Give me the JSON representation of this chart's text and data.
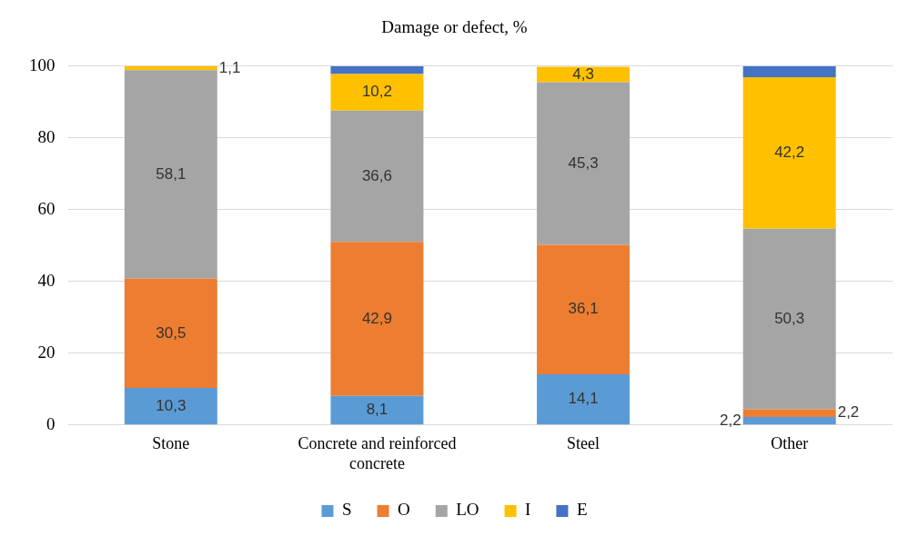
{
  "chart_data": {
    "type": "bar",
    "title": "Damage or defect, %",
    "stacked": true,
    "categories": [
      "Stone",
      "Concrete and reinforced concrete",
      "Steel",
      "Other"
    ],
    "series": [
      {
        "name": "S",
        "color": "#5b9bd5",
        "values": [
          10.3,
          8.1,
          14.1,
          2.2
        ],
        "value_labels": [
          "10,3",
          "8,1",
          "14,1",
          "2,2"
        ]
      },
      {
        "name": "O",
        "color": "#ed7d31",
        "values": [
          30.5,
          42.9,
          36.1,
          2.2
        ],
        "value_labels": [
          "30,5",
          "42,9",
          "36,1",
          "2,2"
        ]
      },
      {
        "name": "LO",
        "color": "#a5a5a5",
        "values": [
          58.1,
          36.6,
          45.3,
          50.3
        ],
        "value_labels": [
          "58,1",
          "36,6",
          "45,3",
          "50,3"
        ]
      },
      {
        "name": "I",
        "color": "#ffc000",
        "values": [
          1.1,
          10.2,
          4.3,
          42.2
        ],
        "value_labels": [
          "1,1",
          "10,2",
          "4,3",
          "42,2"
        ]
      },
      {
        "name": "E",
        "color": "#4472c4",
        "values": [
          null,
          2.2,
          null,
          3.1
        ],
        "value_labels": [
          null,
          null,
          null,
          null
        ]
      }
    ],
    "ylim": [
      0,
      100
    ],
    "yticks": [
      0,
      20,
      40,
      60,
      80,
      100
    ],
    "grid": "y",
    "legend": "bottom"
  }
}
